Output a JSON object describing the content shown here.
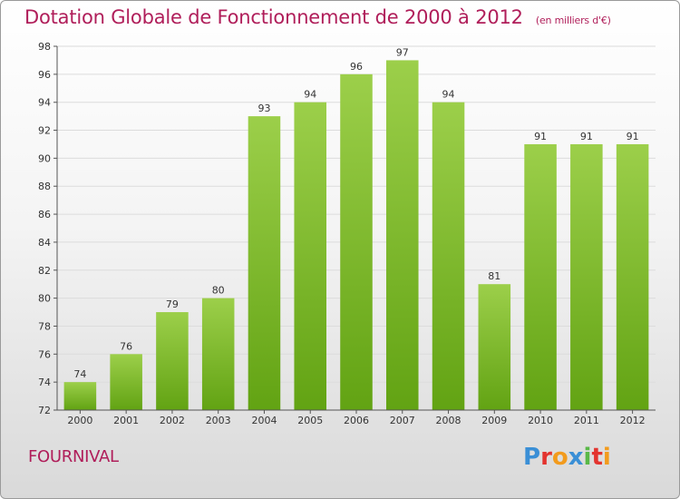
{
  "header": {
    "title": "Dotation Globale de Fonctionnement de 2000 à 2012",
    "unit": "(en milliers d'€)"
  },
  "footer": {
    "commune": "FOURNIVAL",
    "logo_letters": [
      "P",
      "r",
      "o",
      "x",
      "i",
      "t",
      "i"
    ],
    "logo_colors": [
      "#3a8fd6",
      "#e3342f",
      "#f29b1d",
      "#3a8fd6",
      "#59b847",
      "#e3342f",
      "#f29b1d"
    ]
  },
  "chart_data": {
    "type": "bar",
    "categories": [
      "2000",
      "2001",
      "2002",
      "2003",
      "2004",
      "2005",
      "2006",
      "2007",
      "2008",
      "2009",
      "2010",
      "2011",
      "2012"
    ],
    "values": [
      74,
      76,
      79,
      80,
      93,
      94,
      96,
      97,
      94,
      81,
      91,
      91,
      91
    ],
    "ylim": [
      72,
      98
    ],
    "yticks": [
      72,
      74,
      76,
      78,
      80,
      82,
      84,
      86,
      88,
      90,
      92,
      94,
      96,
      98
    ],
    "grid": true,
    "bar_color_top": "#9ccf4a",
    "bar_color_bottom": "#62a313"
  }
}
